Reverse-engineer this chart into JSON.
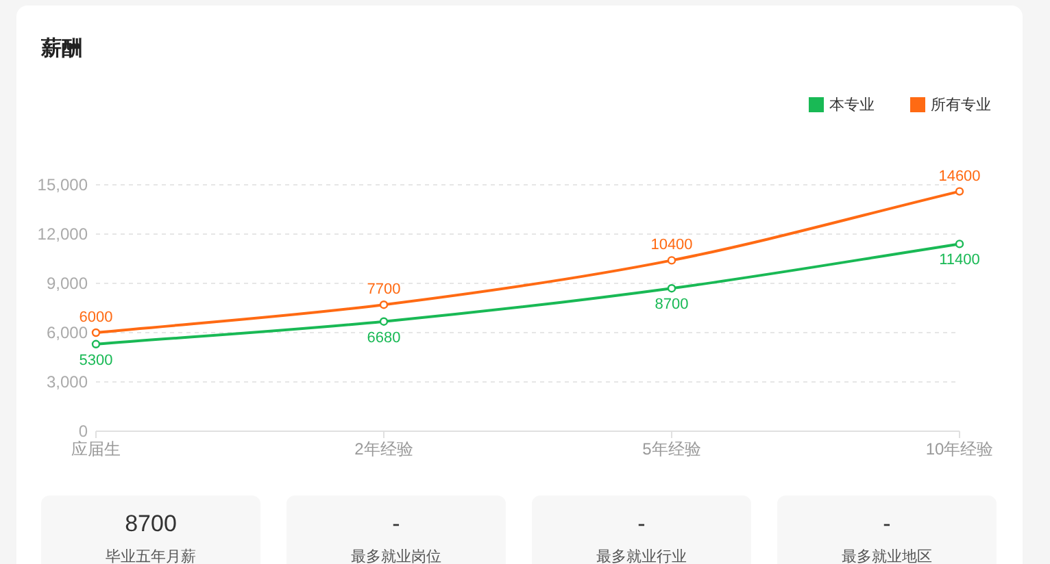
{
  "chart_data": [
    {
      "type": "line",
      "title": "薪酬",
      "categories": [
        "应届生",
        "2年经验",
        "5年经验",
        "10年经验"
      ],
      "series": [
        {
          "name": "本专业",
          "color": "#19b955",
          "values": [
            5300,
            6680,
            8700,
            11400
          ]
        },
        {
          "name": "所有专业",
          "color": "#ff6a13",
          "values": [
            6000,
            7700,
            10400,
            14600
          ]
        }
      ],
      "ylim": [
        0,
        15000
      ],
      "yticks": [
        0,
        {
          "value": 3000,
          "label": "3,000"
        },
        {
          "value": 6000,
          "label": "6,000"
        },
        {
          "value": 9000,
          "label": "9,000"
        },
        {
          "value": 12000,
          "label": "12,000"
        },
        {
          "value": 15000,
          "label": "15,000"
        }
      ],
      "grid": "y",
      "legend": "top right",
      "marker": "circle",
      "data_labels": true
    },
    {
      "type": "other",
      "annotations": [
        "8700",
        "毕业五年月薪",
        "-",
        "最多就业岗位",
        "-",
        "最多就业行业",
        "-",
        "最多就业地区"
      ]
    }
  ]
}
